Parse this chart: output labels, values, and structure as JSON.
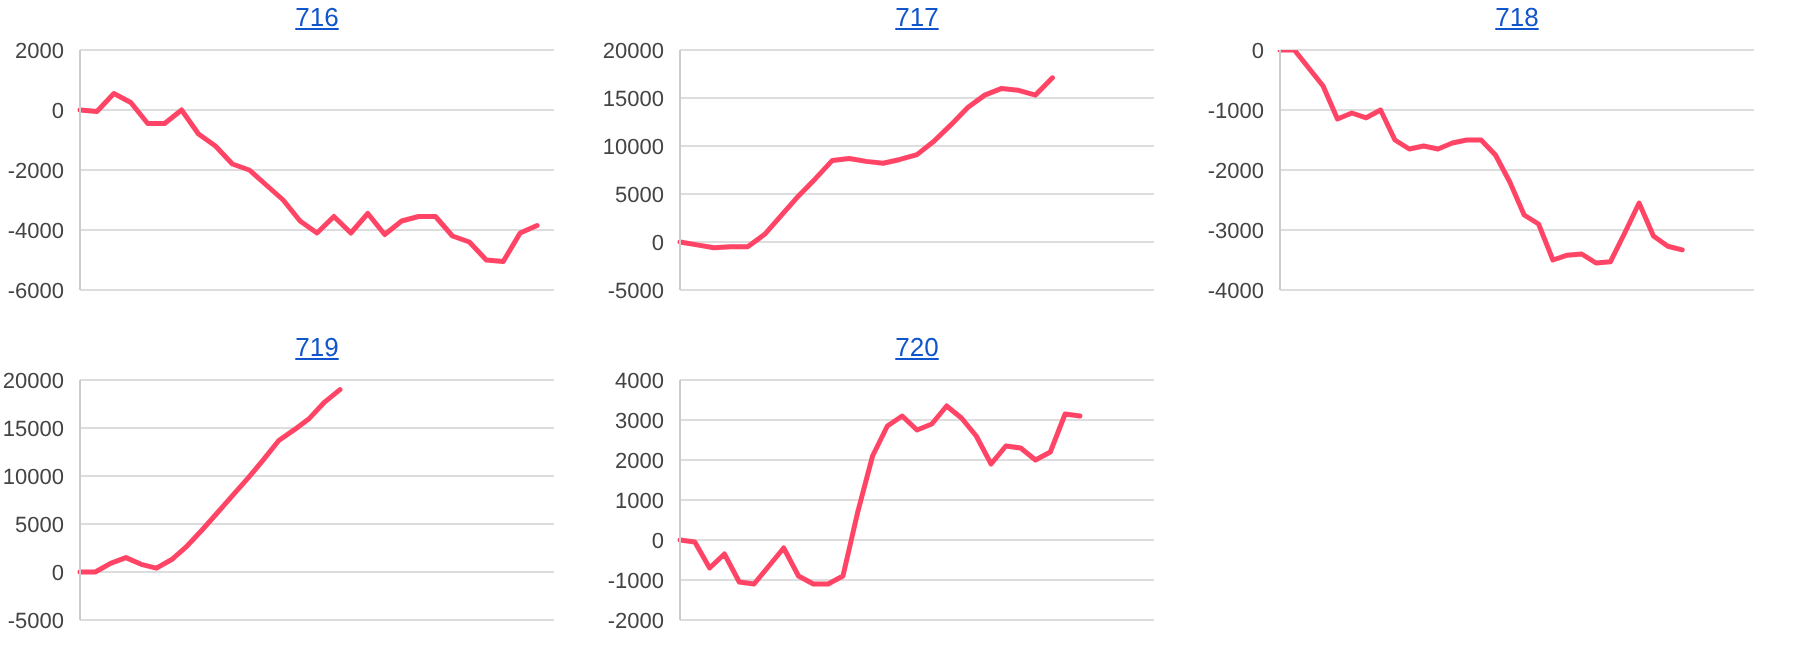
{
  "chart_data": [
    {
      "type": "line",
      "title": "716",
      "categories": [
        null,
        null,
        null,
        null,
        null,
        null,
        null,
        null,
        null,
        null,
        null,
        null,
        null,
        null,
        null,
        null,
        null,
        null,
        null,
        null,
        null,
        null,
        null,
        null,
        null,
        null,
        null,
        null,
        null
      ],
      "series": [
        {
          "color": "#ff4466",
          "values": [
            0,
            -50,
            550,
            250,
            -450,
            -450,
            0,
            -800,
            -1200,
            -1800,
            -2000,
            -2500,
            -3000,
            -3700,
            -4100,
            -3550,
            -4100,
            -3450,
            -4150,
            -3700,
            -3550,
            -3550,
            -4200,
            -4400,
            -5000,
            -5050,
            -4100,
            -3850,
            null
          ]
        }
      ],
      "ylim": [
        -6000,
        2000
      ],
      "yticks": [
        -6000,
        -4000,
        -2000,
        0,
        2000
      ],
      "grid": "y",
      "tick_labels": "y",
      "marker": "none",
      "line_style": "solid"
    },
    {
      "type": "line",
      "title": "717",
      "categories": [
        null,
        null,
        null,
        null,
        null,
        null,
        null,
        null,
        null,
        null,
        null,
        null,
        null,
        null,
        null,
        null,
        null,
        null,
        null,
        null,
        null,
        null,
        null,
        null,
        null,
        null,
        null,
        null,
        null
      ],
      "series": [
        {
          "color": "#ff4466",
          "values": [
            0,
            -300,
            -600,
            -500,
            -500,
            800,
            2800,
            4800,
            6600,
            8500,
            8700,
            8400,
            8200,
            8600,
            9100,
            10500,
            12200,
            14000,
            15300,
            16000,
            15800,
            15300,
            17100,
            null,
            null,
            null,
            null,
            null,
            null
          ]
        }
      ],
      "ylim": [
        -5000,
        20000
      ],
      "yticks": [
        -5000,
        0,
        5000,
        10000,
        15000,
        20000
      ],
      "grid": "y",
      "tick_labels": "y",
      "marker": "none",
      "line_style": "solid"
    },
    {
      "type": "line",
      "title": "718",
      "categories": [
        null,
        null,
        null,
        null,
        null,
        null,
        null,
        null,
        null,
        null,
        null,
        null,
        null,
        null,
        null,
        null,
        null,
        null,
        null,
        null,
        null,
        null,
        null,
        null,
        null,
        null,
        null,
        null,
        null,
        null,
        null,
        null,
        null,
        null
      ],
      "series": [
        {
          "color": "#ff4466",
          "values": [
            0,
            0,
            -300,
            -600,
            -1150,
            -1050,
            -1130,
            -1000,
            -1500,
            -1650,
            -1600,
            -1650,
            -1550,
            -1500,
            -1500,
            -1750,
            -2200,
            -2750,
            -2900,
            -3500,
            -3420,
            -3400,
            -3550,
            -3530,
            -3050,
            -2550,
            -3100,
            -3270,
            -3330,
            null,
            null,
            null,
            null,
            null
          ]
        }
      ],
      "ylim": [
        -4000,
        0
      ],
      "yticks": [
        -4000,
        -3000,
        -2000,
        -1000,
        0
      ],
      "grid": "y",
      "tick_labels": "y",
      "marker": "none",
      "line_style": "solid"
    },
    {
      "type": "line",
      "title": "719",
      "categories": [
        null,
        null,
        null,
        null,
        null,
        null,
        null,
        null,
        null,
        null,
        null,
        null,
        null,
        null,
        null,
        null,
        null,
        null,
        null,
        null,
        null,
        null,
        null,
        null,
        null,
        null,
        null,
        null,
        null,
        null,
        null,
        null
      ],
      "series": [
        {
          "color": "#ff4466",
          "values": [
            0,
            0,
            900,
            1500,
            800,
            400,
            1300,
            2700,
            4400,
            6200,
            8000,
            9800,
            11700,
            13700,
            14800,
            16000,
            17700,
            19000,
            null,
            null,
            null,
            null,
            null,
            null,
            null,
            null,
            null,
            null,
            null,
            null,
            null,
            null
          ]
        }
      ],
      "ylim": [
        -5000,
        20000
      ],
      "yticks": [
        -5000,
        0,
        5000,
        10000,
        15000,
        20000
      ],
      "grid": "y",
      "tick_labels": "y",
      "marker": "none",
      "line_style": "solid"
    },
    {
      "type": "line",
      "title": "720",
      "categories": [
        null,
        null,
        null,
        null,
        null,
        null,
        null,
        null,
        null,
        null,
        null,
        null,
        null,
        null,
        null,
        null,
        null,
        null,
        null,
        null,
        null,
        null,
        null,
        null,
        null,
        null,
        null,
        null,
        null,
        null,
        null,
        null,
        null
      ],
      "series": [
        {
          "color": "#ff4466",
          "values": [
            0,
            -50,
            -700,
            -350,
            -1050,
            -1100,
            -650,
            -200,
            -900,
            -1100,
            -1100,
            -900,
            700,
            2100,
            2850,
            3100,
            2750,
            2900,
            3350,
            3050,
            2600,
            1900,
            2350,
            2300,
            2000,
            2200,
            3150,
            3100,
            null,
            null,
            null,
            null,
            null
          ]
        }
      ],
      "ylim": [
        -2000,
        4000
      ],
      "yticks": [
        -2000,
        -1000,
        0,
        1000,
        2000,
        3000,
        4000
      ],
      "grid": "y",
      "tick_labels": "y",
      "marker": "none",
      "line_style": "solid"
    }
  ]
}
